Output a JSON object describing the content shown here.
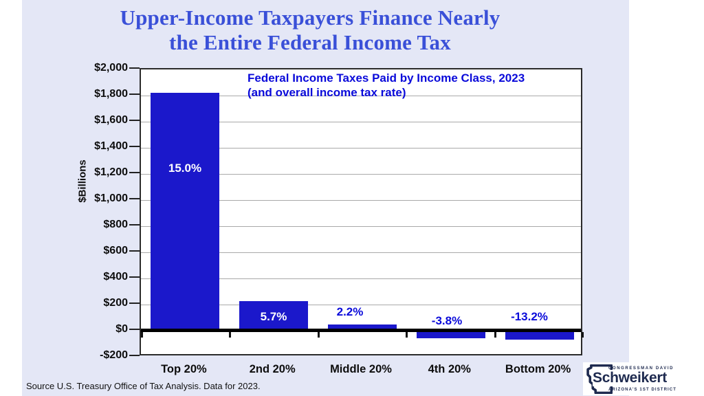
{
  "slide_background": "#e4e7f6",
  "title": {
    "line1": "Upper-Income Taxpayers Finance Nearly",
    "line2": "the Entire Federal Income Tax",
    "color": "#3a50d8"
  },
  "chart_data": {
    "type": "bar",
    "title": "Federal Income Taxes Paid by Income Class, 2023",
    "subtitle": "(and overall income tax rate)",
    "categories": [
      "Top 20%",
      "2nd 20%",
      "Middle 20%",
      "4th 20%",
      "Bottom 20%"
    ],
    "values_billions": [
      1820,
      225,
      48,
      -58,
      -70
    ],
    "rate_labels": [
      "15.0%",
      "5.7%",
      "2.2%",
      "-3.8%",
      "-13.2%"
    ],
    "rate_label_inside_bar": [
      true,
      true,
      false,
      false,
      false
    ],
    "ylabel": "$Billions",
    "ylim": [
      -200,
      2000
    ],
    "ytick_step": 200,
    "ytick_labels": [
      "$2,000",
      "$1,800",
      "$1,600",
      "$1,400",
      "$1,200",
      "$1,000",
      "$800",
      "$600",
      "$400",
      "$200",
      "$0",
      "-$200"
    ],
    "grid": true,
    "legend": "none",
    "bar_color": "#1b18cb",
    "annotation_color": "#0a0ada",
    "inside_label_color": "#ffffff"
  },
  "footer": {
    "source": "Source U.S. Treasury Office of Tax Analysis. Data for 2023."
  },
  "logo": {
    "top_line": "CONGRESSMAN DAVID",
    "name": "Schweikert",
    "bottom_line": "ARIZONA'S 1ST DISTRICT",
    "color": "#1e2a4f"
  }
}
